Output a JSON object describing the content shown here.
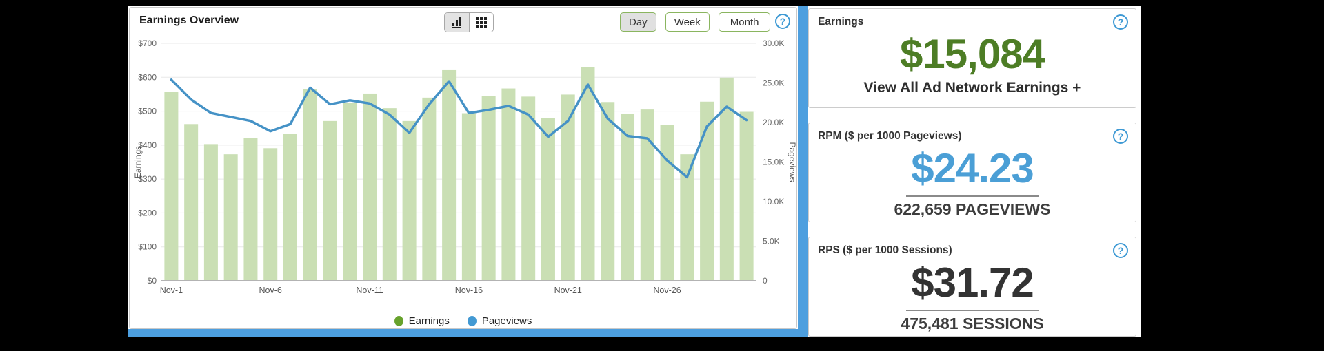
{
  "ui": {
    "help_glyph": "?"
  },
  "chart_panel": {
    "title": "Earnings Overview",
    "view_toggle": {
      "left": "bar-chart-view",
      "right": "grid-view",
      "selected": "bar-chart-view"
    },
    "range_buttons": {
      "day": "Day",
      "week": "Week",
      "month": "Month",
      "selected": "Day"
    }
  },
  "chart_data": {
    "type": "bar+line",
    "title": "Earnings Overview",
    "categories": [
      "Nov-1",
      "Nov-2",
      "Nov-3",
      "Nov-4",
      "Nov-5",
      "Nov-6",
      "Nov-7",
      "Nov-8",
      "Nov-9",
      "Nov-10",
      "Nov-11",
      "Nov-12",
      "Nov-13",
      "Nov-14",
      "Nov-15",
      "Nov-16",
      "Nov-17",
      "Nov-18",
      "Nov-19",
      "Nov-20",
      "Nov-21",
      "Nov-22",
      "Nov-23",
      "Nov-24",
      "Nov-25",
      "Nov-26",
      "Nov-27",
      "Nov-28",
      "Nov-29",
      "Nov-30"
    ],
    "x_tick_indices": [
      0,
      5,
      10,
      15,
      20,
      25
    ],
    "series": [
      {
        "name": "Earnings",
        "type": "bar",
        "axis": "left",
        "color": "#cadfb4",
        "legend_color": "#67a22c",
        "values": [
          557,
          462,
          403,
          373,
          420,
          391,
          433,
          565,
          471,
          524,
          552,
          509,
          471,
          540,
          623,
          494,
          545,
          567,
          543,
          480,
          549,
          631,
          527,
          493,
          505,
          460,
          373,
          528,
          599,
          498
        ]
      },
      {
        "name": "Pageviews",
        "type": "line",
        "axis": "right",
        "color": "#4592c6",
        "legend_color": "#4299d3",
        "values": [
          25400,
          22900,
          21200,
          20700,
          20200,
          18900,
          19800,
          24400,
          22300,
          22800,
          22400,
          21000,
          18700,
          22300,
          25200,
          21200,
          21600,
          22100,
          21000,
          18200,
          20200,
          24800,
          20500,
          18300,
          18000,
          15200,
          13100,
          19500,
          22000,
          20300
        ]
      }
    ],
    "left_axis": {
      "label": "Earnings",
      "min": 0,
      "max": 700,
      "ticks": [
        "$0",
        "$100",
        "$200",
        "$300",
        "$400",
        "$500",
        "$600",
        "$700"
      ]
    },
    "right_axis": {
      "label": "Pageviews",
      "min": 0,
      "max": 30000,
      "ticks": [
        "0",
        "5.0K",
        "10.0K",
        "15.0K",
        "20.0K",
        "25.0K",
        "30.0K"
      ]
    },
    "grid": true,
    "legend_position": "bottom-center"
  },
  "cards": [
    {
      "title": "Earnings",
      "value": "$15,084",
      "value_color": "#4d7d25",
      "link": "View All Ad Network Earnings +"
    },
    {
      "title": "RPM ($ per 1000 Pageviews)",
      "value": "$24.23",
      "value_color": "#4b9fd6",
      "sub": "622,659 PAGEVIEWS"
    },
    {
      "title": "RPS ($ per 1000 Sessions)",
      "value": "$31.72",
      "value_color": "#333333",
      "sub": "475,481 SESSIONS"
    }
  ]
}
